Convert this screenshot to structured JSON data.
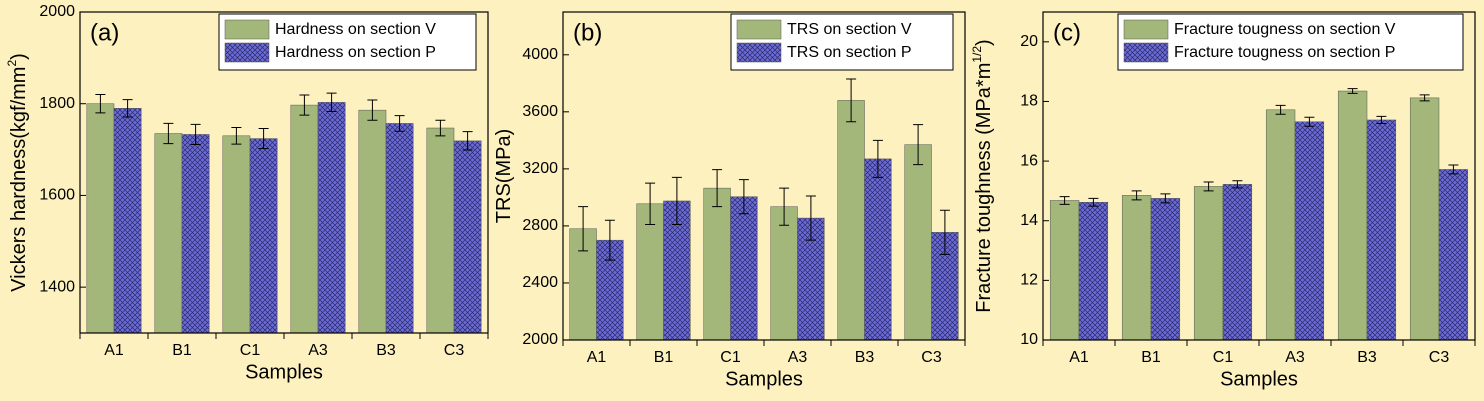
{
  "chart_data": [
    {
      "type": "bar",
      "panel_label": "(a)",
      "ylabel": [
        "Vickers hardness(kgf/mm",
        "2",
        ")"
      ],
      "xlabel": "Samples",
      "categories": [
        "A1",
        "B1",
        "C1",
        "A3",
        "B3",
        "C3"
      ],
      "series": [
        {
          "name": "Hardness on section V",
          "color": "#a4b77a",
          "values": [
            1800,
            1735,
            1730,
            1797,
            1786,
            1747
          ],
          "errors": [
            20,
            22,
            18,
            22,
            22,
            17
          ]
        },
        {
          "name": "Hardness on section P",
          "color": "#6b6bd6",
          "pattern": "crosshatch",
          "values": [
            1790,
            1733,
            1724,
            1803,
            1757,
            1719
          ],
          "errors": [
            19,
            22,
            22,
            20,
            17,
            20
          ]
        }
      ],
      "ylim": [
        1300,
        2000
      ],
      "yticks": [
        1400,
        1600,
        1800,
        2000
      ],
      "legend": "upper right"
    },
    {
      "type": "bar",
      "panel_label": "(b)",
      "ylabel": [
        "TRS(MPa)"
      ],
      "xlabel": "Samples",
      "categories": [
        "A1",
        "B1",
        "C1",
        "A3",
        "B3",
        "C3"
      ],
      "series": [
        {
          "name": "TRS on section V",
          "color": "#a4b77a",
          "values": [
            2780,
            2955,
            3065,
            2935,
            3680,
            3370
          ],
          "errors": [
            155,
            145,
            130,
            130,
            150,
            140
          ]
        },
        {
          "name": "TRS on section P",
          "color": "#6b6bd6",
          "pattern": "crosshatch",
          "values": [
            2700,
            2975,
            3005,
            2855,
            3270,
            2755
          ],
          "errors": [
            140,
            165,
            120,
            155,
            130,
            155
          ]
        }
      ],
      "ylim": [
        2000,
        4300
      ],
      "yticks": [
        2000,
        2400,
        2800,
        3200,
        3600,
        4000
      ],
      "legend": "upper right"
    },
    {
      "type": "bar",
      "panel_label": "(c)",
      "ylabel": [
        "Fracture toughness (MPa*m",
        "1/2",
        ")"
      ],
      "xlabel": "Samples",
      "categories": [
        "A1",
        "B1",
        "C1",
        "A3",
        "B3",
        "C3"
      ],
      "series": [
        {
          "name": "Fracture tougness on section V",
          "color": "#a4b77a",
          "values": [
            14.68,
            14.85,
            15.15,
            17.72,
            18.35,
            18.12
          ],
          "errors": [
            0.13,
            0.15,
            0.15,
            0.15,
            0.08,
            0.1
          ]
        },
        {
          "name": "Fracture tougness on section P",
          "color": "#6b6bd6",
          "pattern": "crosshatch",
          "values": [
            14.62,
            14.75,
            15.22,
            17.32,
            17.38,
            15.72
          ],
          "errors": [
            0.13,
            0.15,
            0.12,
            0.15,
            0.12,
            0.15
          ]
        }
      ],
      "ylim": [
        10,
        21
      ],
      "yticks": [
        10,
        12,
        14,
        16,
        18,
        20
      ],
      "legend": "upper right"
    }
  ]
}
